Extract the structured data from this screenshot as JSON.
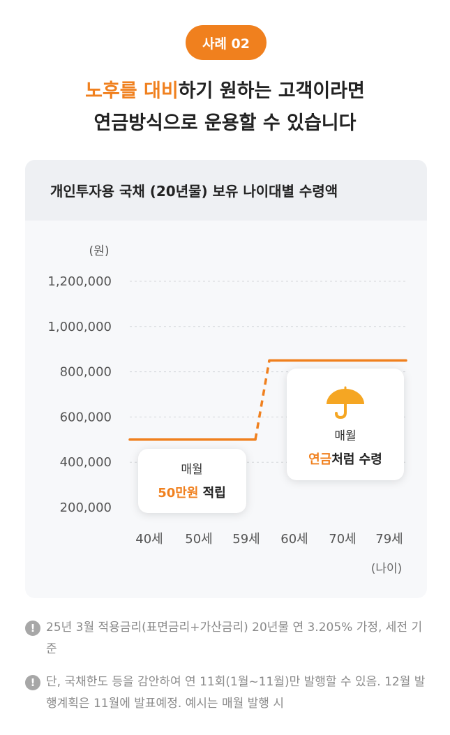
{
  "badge": "사례 02",
  "headline": {
    "line1_a": "노후를 대비",
    "line1_b": "하기 원하는 고객이라면",
    "line2": "연금방식으로 운용할 수 있습니다"
  },
  "colors": {
    "accent": "#f0801e",
    "grid": "#d4d6da",
    "axis_text": "#555555"
  },
  "chart_data": {
    "type": "line",
    "title": "개인투자용 국채 (20년물) 보유 나이대별 수령액",
    "y_unit": "(원)",
    "x_unit": "(나이)",
    "categories": [
      "40세",
      "50세",
      "59세",
      "60세",
      "70세",
      "79세"
    ],
    "y_ticks": [
      "1,200,000",
      "1,000,000",
      "800,000",
      "600,000",
      "400,000",
      "200,000"
    ],
    "ylim": [
      200000,
      1200000
    ],
    "grid": true,
    "series": [
      {
        "values": [
          500000,
          500000,
          500000,
          850000,
          850000,
          850000
        ]
      }
    ],
    "annotations": {
      "saving_label": "매월",
      "saving_amount": "50만원",
      "saving_suffix": " 적립",
      "pension_label": "매월",
      "pension_accent": "연금",
      "pension_suffix": "처럼 수령",
      "pension_icon": "umbrella-icon"
    }
  },
  "notes": [
    {
      "icon": "!",
      "text": "25년 3월 적용금리(표면금리+가산금리) 20년물 연 3.205% 가정, 세전 기준"
    },
    {
      "icon": "!",
      "text": "단, 국채한도 등을 감안하여 연 11회(1월~11월)만 발행할 수 있음. 12월 발행계획은 11월에 발표예정. 예시는 매월 발행 시"
    }
  ]
}
